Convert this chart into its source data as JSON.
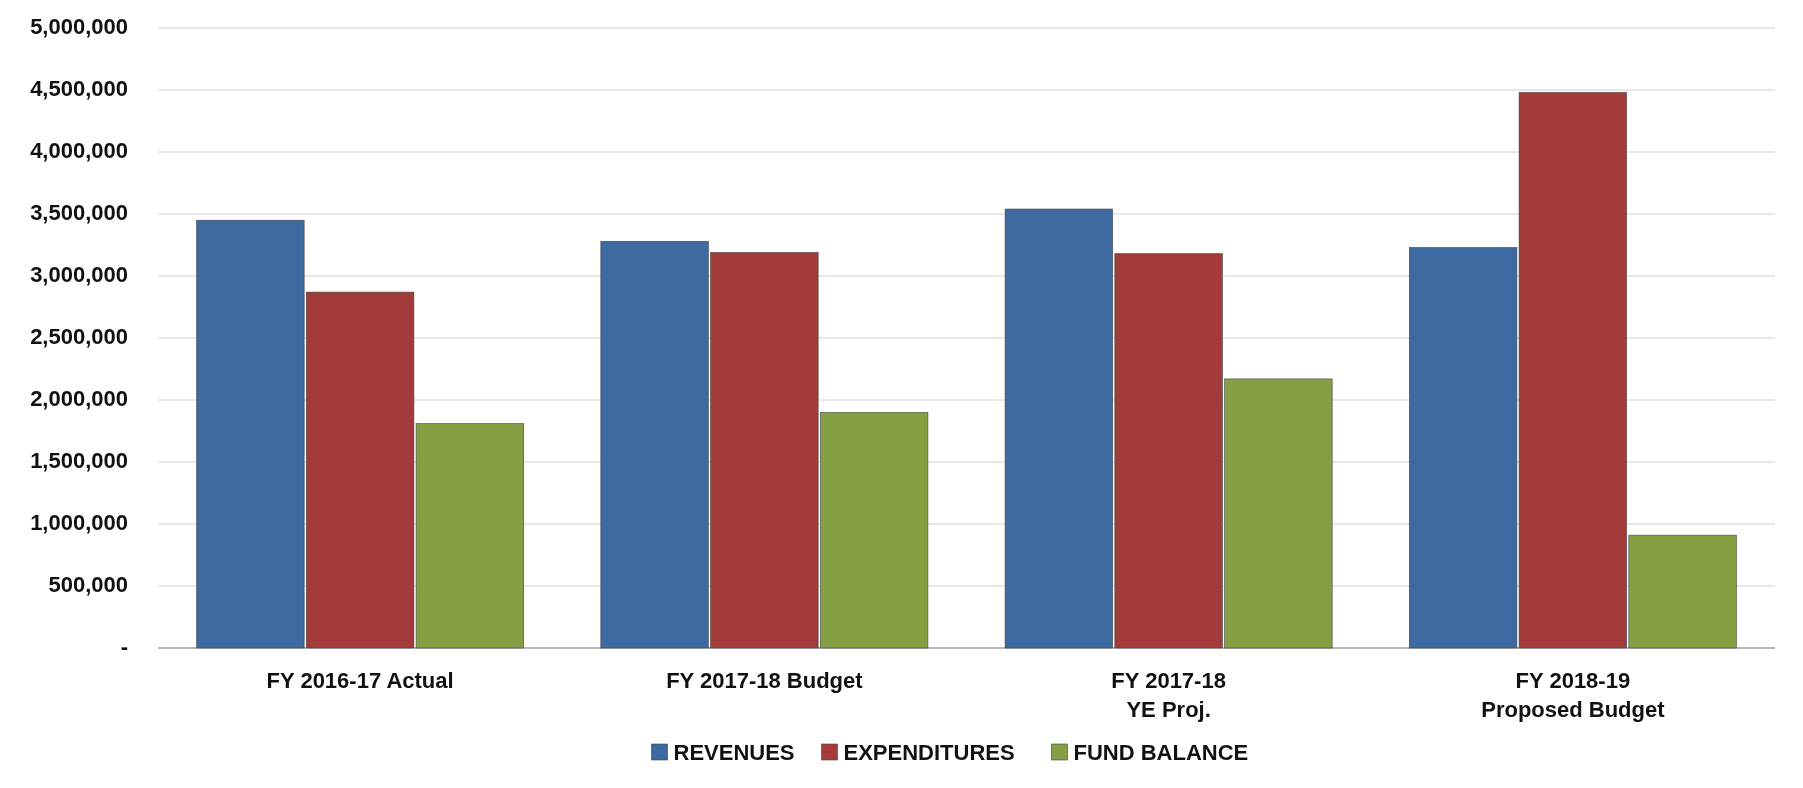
{
  "chart_data": {
    "type": "bar",
    "categories": [
      "FY 2016-17 Actual",
      "FY 2017-18 Budget",
      "FY 2017-18\nYE Proj.",
      "FY 2018-19\nProposed Budget"
    ],
    "series": [
      {
        "name": "REVENUES",
        "color": "#3d6aa0",
        "values": [
          3450000,
          3280000,
          3540000,
          3230000
        ]
      },
      {
        "name": "EXPENDITURES",
        "color": "#a23b3a",
        "values": [
          2870000,
          3190000,
          3180000,
          4480000
        ]
      },
      {
        "name": "FUND BALANCE",
        "color": "#84a043",
        "values": [
          1810000,
          1900000,
          2170000,
          910000
        ]
      }
    ],
    "ylim": [
      0,
      5000000
    ],
    "yticks": [
      {
        "value": 0,
        "label": "-"
      },
      {
        "value": 500000,
        "label": "500,000"
      },
      {
        "value": 1000000,
        "label": "1,000,000"
      },
      {
        "value": 1500000,
        "label": "1,500,000"
      },
      {
        "value": 2000000,
        "label": "2,000,000"
      },
      {
        "value": 2500000,
        "label": "2,500,000"
      },
      {
        "value": 3000000,
        "label": "3,000,000"
      },
      {
        "value": 3500000,
        "label": "3,500,000"
      },
      {
        "value": 4000000,
        "label": "4,000,000"
      },
      {
        "value": 4500000,
        "label": "4,500,000"
      },
      {
        "value": 5000000,
        "label": "5,000,000"
      }
    ],
    "grid": "y",
    "legend": "bottom"
  }
}
